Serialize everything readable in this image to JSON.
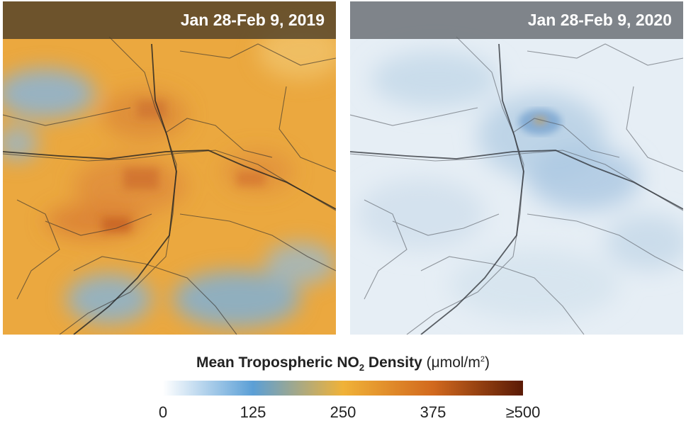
{
  "panels": [
    {
      "label": "Jan 28-Feb 9, 2019"
    },
    {
      "label": "Jan 28-Feb 9, 2020"
    }
  ],
  "legend": {
    "title_main": "Mean Tropospheric NO",
    "title_sub": "2",
    "title_main_end": " Density ",
    "unit_open": "(μmol/m",
    "unit_sup": "2",
    "unit_close": ")",
    "ticks": [
      "0",
      "125",
      "250",
      "375",
      "≥500"
    ],
    "colors": [
      "#ffffff",
      "#5b9fd6",
      "#f0b238",
      "#d2691e",
      "#5a1a05"
    ]
  }
}
